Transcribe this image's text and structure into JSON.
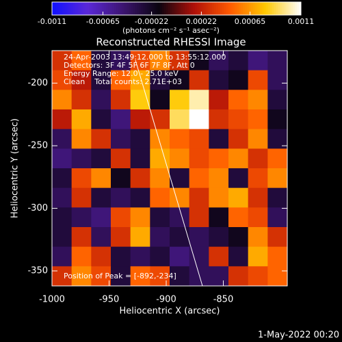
{
  "chart_data": {
    "type": "heatmap",
    "title": "Reconstructed RHESSI Image",
    "xlabel": "Heliocentric X (arcsec)",
    "ylabel": "Heliocentric Y (arcsec)",
    "colorbar_label": "(photons cm⁻² s⁻¹ asec⁻²)",
    "clim": [
      -0.0011,
      0.0011
    ],
    "cticks": [
      -0.0011,
      -0.00065,
      -0.00022,
      0.00022,
      0.00065,
      0.0011
    ],
    "colorscale": [
      "#1010ff",
      "#5a28d8",
      "#3c1470",
      "#0a0410",
      "#b01008",
      "#ff5a00",
      "#ffc800",
      "#ffffff"
    ],
    "xlim": [
      -1000,
      -794
    ],
    "xticks": [
      -1000,
      -950,
      -900,
      -850
    ],
    "ylim": [
      -362,
      -174
    ],
    "yticks": [
      -200,
      -250,
      -300,
      -350
    ],
    "annotations": [
      "24-Apr-2003 13:49:12.000 to 13:55:12.000",
      "Detectors: 3F 4F 5F 6F 7F 8F, Att 0",
      "Energy Range: 12.0 - 25.0 keV",
      "Clean    Total counts: 2.71E+03"
    ],
    "peak_label": "Position of Peak = [-892,-234]",
    "footer": "1-May-2022 00:20",
    "z": [
      [
        0.0003,
        0.0005,
        -0.0003,
        -0.0004,
        0.0004,
        0.0006,
        0.0003,
        -0.0002,
        -0.0004,
        -0.0003,
        -0.0005,
        -0.0004
      ],
      [
        0.0004,
        0.0002,
        -0.0003,
        0.0005,
        0.0007,
        -0.0003,
        -0.0002,
        0.0003,
        -0.0003,
        -0.0002,
        0.0004,
        -0.0004
      ],
      [
        0.0006,
        0.0003,
        -0.0004,
        0.0003,
        0.0008,
        -0.0002,
        0.0008,
        0.001,
        0.0002,
        0.0005,
        0.0006,
        -0.0003
      ],
      [
        0.0002,
        0.0007,
        -0.0003,
        -0.0005,
        0.0002,
        0.0003,
        0.0009,
        0.0011,
        0.0003,
        0.0004,
        0.0005,
        -0.0002
      ],
      [
        -0.0004,
        0.0006,
        0.0003,
        -0.0004,
        -0.0003,
        0.0006,
        0.0005,
        0.0004,
        -0.0003,
        0.0003,
        0.0006,
        -0.0003
      ],
      [
        -0.0005,
        -0.0004,
        -0.0003,
        0.0003,
        -0.0003,
        0.0007,
        0.0006,
        0.0004,
        0.0005,
        0.0006,
        0.0003,
        0.0005
      ],
      [
        -0.0003,
        0.0004,
        0.0006,
        -0.0002,
        0.0003,
        0.0006,
        -0.0003,
        0.0005,
        0.0006,
        -0.0003,
        0.0004,
        0.0006
      ],
      [
        -0.0004,
        0.0003,
        -0.0003,
        -0.0004,
        -0.0003,
        0.0005,
        0.0006,
        0.0003,
        0.0006,
        0.0007,
        0.0003,
        -0.0003
      ],
      [
        -0.0003,
        -0.0004,
        -0.0005,
        0.0004,
        0.0006,
        -0.0003,
        -0.0004,
        0.0003,
        -0.0002,
        0.0005,
        0.0004,
        -0.0004
      ],
      [
        -0.0003,
        0.0003,
        -0.0004,
        0.0003,
        0.0007,
        -0.0004,
        -0.0003,
        -0.0004,
        -0.0003,
        -0.0002,
        0.0006,
        0.0003
      ],
      [
        -0.0004,
        0.0005,
        0.0003,
        -0.0003,
        -0.0004,
        -0.0003,
        -0.0005,
        -0.0004,
        0.0003,
        -0.0003,
        0.0007,
        0.0005
      ],
      [
        0.0003,
        0.0006,
        0.0004,
        -0.0003,
        0.0005,
        0.0004,
        -0.0003,
        -0.0004,
        -0.0004,
        0.0003,
        0.0004,
        0.0005
      ]
    ]
  }
}
